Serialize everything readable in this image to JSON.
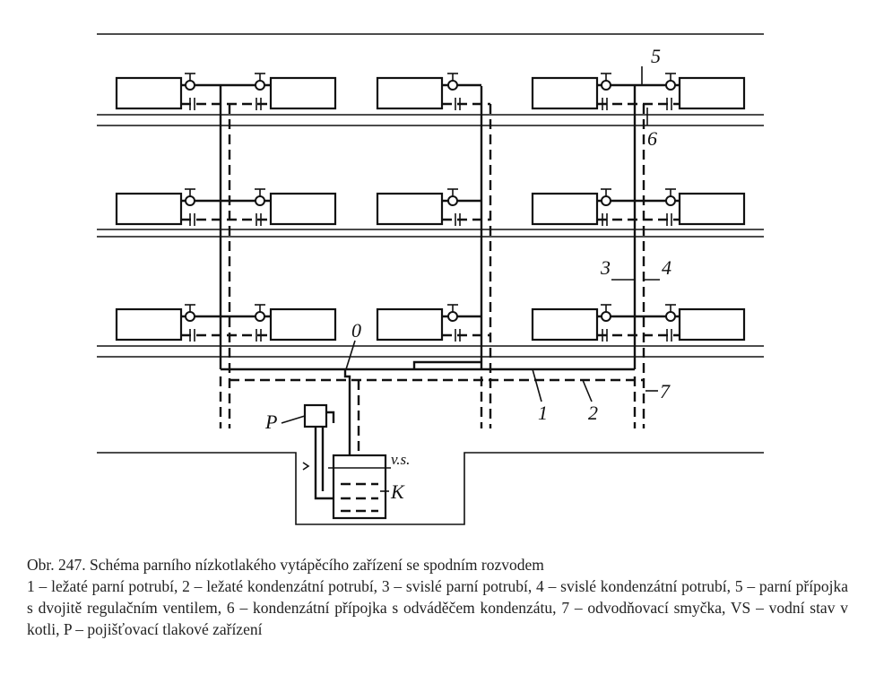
{
  "diagram": {
    "labels": {
      "l1": "1",
      "l2": "2",
      "l3": "3",
      "l4": "4",
      "l5": "5",
      "l6": "6",
      "l7": "7",
      "l0": "0",
      "lP": "P",
      "lK": "K",
      "lVS": "v.s."
    }
  },
  "caption": {
    "title": "Obr. 247. Schéma parního nízkotlakého vytápěcího zařízení se spodním rozvodem",
    "legend": "1 – ležaté parní potrubí, 2 – ležaté kondenzátní potrubí, 3 – svislé parní potrubí, 4 – svislé kondenzátní potrubí, 5 – parní přípojka s dvojitě regulačním ventilem, 6 – kondenzátní přípojka s odváděčem kondenzátu, 7 – odvodňovací smyčka, VS – vodní stav v kotli, P – pojišťovací tlakové zařízení"
  }
}
